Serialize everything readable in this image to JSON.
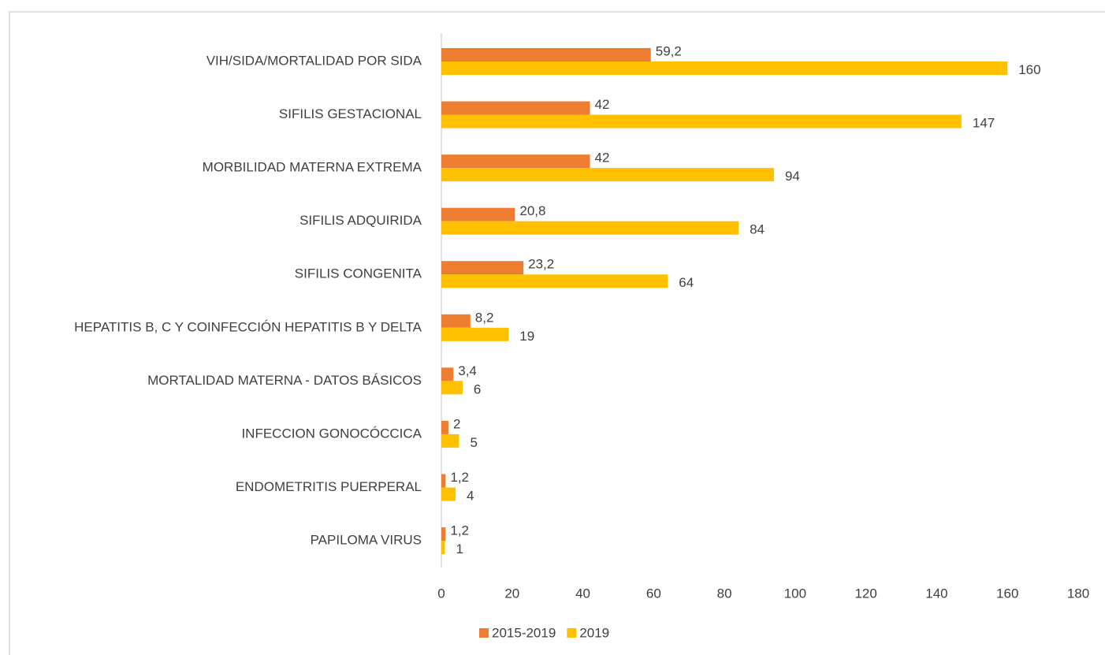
{
  "chart_data": {
    "type": "hbar",
    "categories": [
      "VIH/SIDA/MORTALIDAD POR SIDA",
      "SIFILIS GESTACIONAL",
      "MORBILIDAD MATERNA EXTREMA",
      "SIFILIS ADQUIRIDA",
      "SIFILIS CONGENITA",
      "HEPATITIS B, C Y COINFECCIÓN HEPATITIS B Y DELTA",
      "MORTALIDAD MATERNA - DATOS BÁSICOS",
      "INFECCION GONOCÓCCICA",
      "ENDOMETRITIS PUERPERAL",
      "PAPILOMA VIRUS"
    ],
    "series": [
      {
        "name": "2015-2019",
        "color": "#ed7d31",
        "values": [
          59.2,
          42,
          42,
          20.8,
          23.2,
          8.2,
          3.4,
          2,
          1.2,
          1.2
        ],
        "value_labels": [
          "59,2",
          "42",
          "42",
          "20,8",
          "23,2",
          "8,2",
          "3,4",
          "2",
          "1,2",
          "1,2"
        ]
      },
      {
        "name": "2019",
        "color": "#ffc000",
        "values": [
          160,
          147,
          94,
          84,
          64,
          19,
          6,
          5,
          4,
          1
        ]
      }
    ],
    "xlim": [
      0,
      180
    ],
    "xticks": [
      0,
      20,
      40,
      60,
      80,
      100,
      120,
      140,
      160,
      180
    ],
    "legend": "bottom",
    "grid": false
  }
}
